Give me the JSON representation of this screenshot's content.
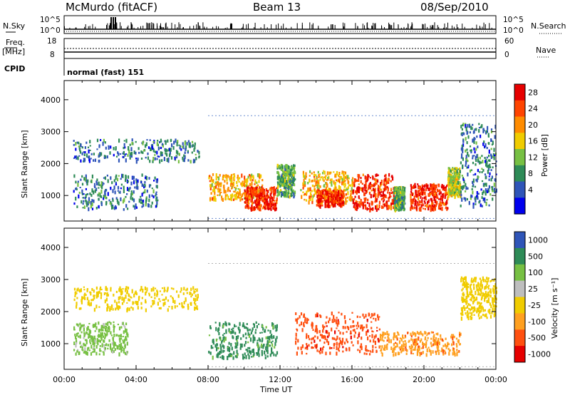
{
  "header": {
    "station": "McMurdo (fitACF)",
    "beam": "Beam 13",
    "date": "08/Sep/2010"
  },
  "status_panels": {
    "nsky_label": "N.Sky",
    "nsky_ticks": [
      "10^5",
      "10^0"
    ],
    "nsearch_label": "N.Search",
    "nsearch_ticks": [
      "10^5",
      "10^0"
    ],
    "freq_label_1": "Freq.",
    "freq_label_2": "[MHz]",
    "freq_ticks": [
      "18",
      "8"
    ],
    "nave_label": "Nave",
    "nave_ticks": [
      "60",
      "0"
    ],
    "cpid_label": "CPID",
    "cpid_value": "normal (fast) 151"
  },
  "chart_data": [
    {
      "type": "heatmap",
      "title": "",
      "ylabel": "Slant Range [km]",
      "xlabel": "",
      "ylim": [
        200,
        4600
      ],
      "yticks": [
        "4000",
        "3000",
        "2000",
        "1000"
      ],
      "colorbar_label": "Power [dB]",
      "colorbar_ticks": [
        "28",
        "24",
        "20",
        "16",
        "12",
        "8",
        "4"
      ],
      "colors": [
        "#0000ee",
        "#2f55b8",
        "#2e8b57",
        "#77c043",
        "#f0cc00",
        "#ff8c00",
        "#ff4400",
        "#e60000"
      ],
      "patches": [
        {
          "t0": 0.5,
          "t1": 7.5,
          "r0": 2100,
          "r1": 2800,
          "value": 8
        },
        {
          "t0": 0.5,
          "t1": 5.2,
          "r0": 600,
          "r1": 1700,
          "value": 8
        },
        {
          "t0": 8.0,
          "t1": 11.0,
          "r0": 900,
          "r1": 1700,
          "value": 20
        },
        {
          "t0": 10.0,
          "t1": 11.8,
          "r0": 600,
          "r1": 1300,
          "value": 28
        },
        {
          "t0": 11.8,
          "t1": 12.8,
          "r0": 1000,
          "r1": 2000,
          "value": 12
        },
        {
          "t0": 13.1,
          "t1": 16.0,
          "r0": 800,
          "r1": 1800,
          "value": 20
        },
        {
          "t0": 14.0,
          "t1": 15.5,
          "r0": 700,
          "r1": 1200,
          "value": 28
        },
        {
          "t0": 16.0,
          "t1": 18.3,
          "r0": 600,
          "r1": 1700,
          "value": 28
        },
        {
          "t0": 18.3,
          "t1": 18.9,
          "r0": 600,
          "r1": 1300,
          "value": 12
        },
        {
          "t0": 19.2,
          "t1": 21.3,
          "r0": 600,
          "r1": 1400,
          "value": 28
        },
        {
          "t0": 21.3,
          "t1": 22.0,
          "r0": 1000,
          "r1": 1900,
          "value": 16
        },
        {
          "t0": 22.0,
          "t1": 24.0,
          "r0": 700,
          "r1": 3300,
          "value": 8
        }
      ]
    },
    {
      "type": "heatmap",
      "title": "",
      "ylabel": "Slant Range [km]",
      "xlabel": "Time UT",
      "xticks": [
        "00:00",
        "04:00",
        "08:00",
        "12:00",
        "16:00",
        "20:00",
        "00:00"
      ],
      "xlim": [
        0,
        24
      ],
      "ylim": [
        200,
        4600
      ],
      "yticks": [
        "4000",
        "3000",
        "2000",
        "1000"
      ],
      "colorbar_label": "Velocity [m s⁻¹]",
      "colorbar_ticks": [
        "1000",
        "500",
        "100",
        "25",
        "-25",
        "-100",
        "-500",
        "-1000"
      ],
      "colors": [
        "#2f55b8",
        "#2e8b57",
        "#77c043",
        "#bebebe",
        "#f0cc00",
        "#ffa020",
        "#ff5010",
        "#e60000"
      ],
      "patches": [
        {
          "t0": 0.5,
          "t1": 7.5,
          "r0": 2100,
          "r1": 2800,
          "value": 0
        },
        {
          "t0": 0.5,
          "t1": 3.5,
          "r0": 700,
          "r1": 1700,
          "value": 100
        },
        {
          "t0": 8.0,
          "t1": 11.8,
          "r0": 600,
          "r1": 1700,
          "value": 500
        },
        {
          "t0": 12.8,
          "t1": 17.5,
          "r0": 700,
          "r1": 2000,
          "value": -500
        },
        {
          "t0": 17.5,
          "t1": 22.0,
          "r0": 700,
          "r1": 1400,
          "value": -100
        },
        {
          "t0": 22.0,
          "t1": 24.0,
          "r0": 1800,
          "r1": 3100,
          "value": 0
        }
      ]
    }
  ]
}
